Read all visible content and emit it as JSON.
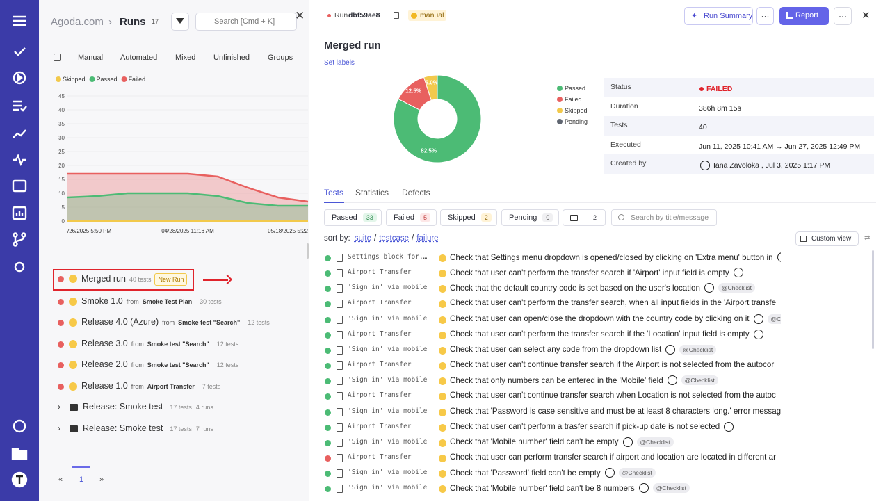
{
  "header": {
    "breadcrumb": "Agoda.com",
    "separator": "›",
    "title": "Runs",
    "count": 17,
    "search_placeholder": "Search [Cmd + K]"
  },
  "filter_tabs": [
    "Manual",
    "Automated",
    "Mixed",
    "Unfinished",
    "Groups"
  ],
  "chart_data": [
    {
      "type": "area",
      "categories": [
        "/26/2025 5:50 PM",
        null,
        null,
        null,
        "04/28/2025 11:16 AM",
        null,
        null,
        null,
        "05/18/2025 5:22"
      ],
      "series": [
        {
          "name": "Skipped",
          "color": "#f2c94c",
          "values": [
            0,
            0,
            0,
            0,
            0,
            0,
            0,
            0,
            0
          ]
        },
        {
          "name": "Passed",
          "color": "#4cbb75",
          "values": [
            8.5,
            9,
            10,
            10,
            10,
            9,
            6.5,
            5.5,
            5.5
          ]
        },
        {
          "name": "Failed",
          "color": "#e8605f",
          "values": [
            17,
            17,
            17,
            17,
            17,
            16,
            12,
            8.5,
            7
          ]
        }
      ],
      "ylim": [
        0,
        45
      ],
      "yticks": [
        0,
        5,
        10,
        15,
        20,
        25,
        30,
        35,
        40,
        45
      ],
      "grid": true,
      "legend": "top-left"
    },
    {
      "type": "pie",
      "categories": [
        "Passed",
        "Failed",
        "Skipped",
        "Pending"
      ],
      "values": [
        82.5,
        12.5,
        5.0,
        0
      ],
      "value_labels": [
        "82.5%",
        "12.5%",
        "5.0%",
        null
      ],
      "colors": [
        "#4cbb75",
        "#e8605f",
        "#f2c94c",
        "#5f6570"
      ],
      "hole": true,
      "legend": "right"
    }
  ],
  "runs_list": {
    "from_label": "from",
    "items": [
      {
        "name": "Merged run",
        "tests": "40 tests",
        "badge": "New Run",
        "status": "failed"
      },
      {
        "name": "Smoke 1.0",
        "from": "Smoke Test Plan",
        "tests": "30 tests",
        "status": "failed"
      },
      {
        "name": "Release 4.0 (Azure)",
        "from": "Smoke test \"Search\"",
        "tests": "12 tests",
        "status": "failed"
      },
      {
        "name": "Release 3.0",
        "from": "Smoke test \"Search\"",
        "tests": "12 tests",
        "status": "failed"
      },
      {
        "name": "Release 2.0",
        "from": "Smoke test \"Search\"",
        "tests": "12 tests",
        "status": "failed"
      },
      {
        "name": "Release 1.0",
        "from": "Airport Transfer",
        "tests": "7 tests",
        "status": "failed"
      }
    ],
    "groups": [
      {
        "name": "Release: Smoke test",
        "tests": "17 tests",
        "runs": "4 runs"
      },
      {
        "name": "Release: Smoke test",
        "tests": "17 tests",
        "runs": "7 runs"
      }
    ]
  },
  "pagination": {
    "prev": "«",
    "page": 1,
    "next": "»"
  },
  "run_header": {
    "label": "Run",
    "id": "dbf59ae8",
    "tag": "manual",
    "run_summary": "Run Summary",
    "report": "Report"
  },
  "run": {
    "title": "Merged run",
    "set_labels": "Set labels",
    "details": [
      {
        "key": "Status",
        "value": "FAILED"
      },
      {
        "key": "Duration",
        "value": "386h 8m 15s"
      },
      {
        "key": "Tests",
        "value": "40"
      },
      {
        "key": "Executed",
        "value": "Jun 11, 2025 10:41 AM → Jun 27, 2025 12:49 PM"
      },
      {
        "key": "Created by",
        "value": "Iana Zavoloka , Jul 3, 2025 1:17 PM"
      }
    ]
  },
  "detail_tabs": [
    "Tests",
    "Statistics",
    "Defects"
  ],
  "status_filters": [
    {
      "label": "Passed",
      "count": 33
    },
    {
      "label": "Failed",
      "count": 5
    },
    {
      "label": "Skipped",
      "count": 2
    },
    {
      "label": "Pending",
      "count": 0
    }
  ],
  "comments_count": 2,
  "test_search_placeholder": "Search by title/message",
  "sort": {
    "label": "sort by:",
    "options": [
      "suite",
      "testcase",
      "failure"
    ],
    "separator": "/"
  },
  "custom_view": "Custom view",
  "tests": [
    {
      "status": "passed",
      "suite": "Settings block for...",
      "title": "Check that Settings menu dropdown is opened/closed by clicking on 'Extra menu' button in"
    },
    {
      "status": "passed",
      "suite": "Airport Transfer",
      "title": "Check that user can't perform the transfer search if 'Airport' input field is empty"
    },
    {
      "status": "passed",
      "suite": "'Sign in' via mobile",
      "title": "Check that the default country code is set based on the user's location",
      "tag": "@Checklist"
    },
    {
      "status": "passed",
      "suite": "Airport Transfer",
      "title": "Check that user can't perform the transfer search, when all input fields in the 'Airport transfe"
    },
    {
      "status": "passed",
      "suite": "'Sign in' via mobile",
      "title": "Check that user can open/close the dropdown with the country code by clicking on it",
      "tag": "@Checklist"
    },
    {
      "status": "passed",
      "suite": "Airport Transfer",
      "title": "Check that user can't perform the transfer search if the 'Location' input field is empty"
    },
    {
      "status": "passed",
      "suite": "'Sign in' via mobile",
      "title": "Check that user can select any code from the dropdown list",
      "tag": "@Checklist"
    },
    {
      "status": "passed",
      "suite": "Airport Transfer",
      "title": "Check that user can't continue transfer search if the Airport is not selected from the autocor"
    },
    {
      "status": "passed",
      "suite": "'Sign in' via mobile",
      "title": "Check that only numbers can be entered in the 'Mobile' field",
      "tag": "@Checklist"
    },
    {
      "status": "passed",
      "suite": "Airport Transfer",
      "title": "Check that user can't continue transfer search when Location is not selected from the autoc"
    },
    {
      "status": "passed",
      "suite": "'Sign in' via mobile",
      "title": "Check that 'Password is case sensitive and must be at least 8 characters long.' error messag"
    },
    {
      "status": "passed",
      "suite": "Airport Transfer",
      "title": "Check that user can't perform a trasfer search if pick-up date is not selected"
    },
    {
      "status": "passed",
      "suite": "'Sign in' via mobile",
      "title": "Check that 'Mobile number' field can't be empty",
      "tag": "@Checklist"
    },
    {
      "status": "failed",
      "suite": "Airport Transfer",
      "title": "Check that user can perform transfer search if airport and location are located in different ar"
    },
    {
      "status": "passed",
      "suite": "'Sign in' via mobile",
      "title": "Check that 'Password' field can't be empty",
      "tag": "@Checklist"
    },
    {
      "status": "passed",
      "suite": "'Sign in' via mobile",
      "title": "Check that 'Mobile number' field can't be 8 numbers",
      "tag": "@Checklist"
    }
  ]
}
